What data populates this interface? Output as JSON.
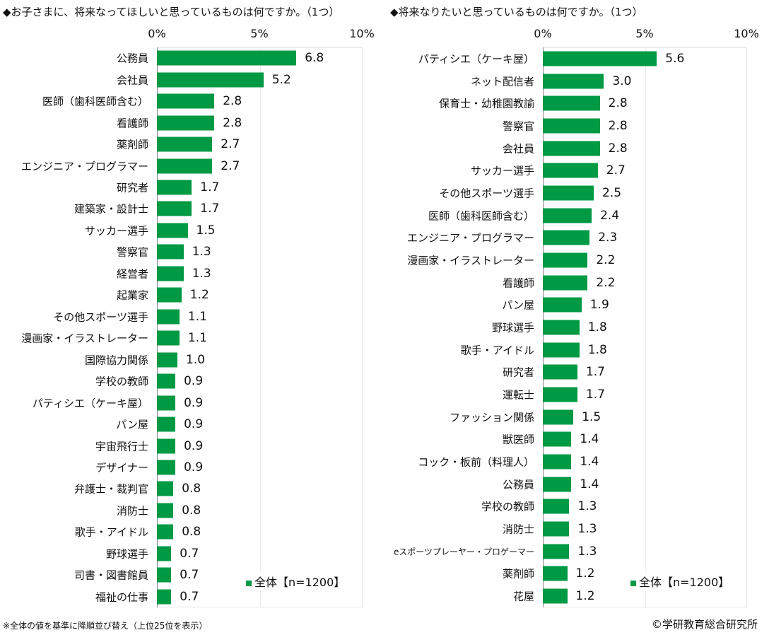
{
  "chart_data": [
    {
      "type": "bar",
      "orientation": "horizontal",
      "title": "◆お子さまに、将来なってほしいと思っているものは何ですか。（1つ）",
      "xlim": [
        0,
        10
      ],
      "xticks": [
        "0%",
        "5%",
        "10%"
      ],
      "legend": "全体【n=1200】",
      "legend_placement": "bottom-right",
      "categories": [
        "公務員",
        "会社員",
        "医師（歯科医師含む）",
        "看護師",
        "薬剤師",
        "エンジニア・プログラマー",
        "研究者",
        "建築家・設計士",
        "サッカー選手",
        "警察官",
        "経営者",
        "起業家",
        "その他スポーツ選手",
        "漫画家・イラストレーター",
        "国際協力関係",
        "学校の教師",
        "パティシエ（ケーキ屋）",
        "パン屋",
        "宇宙飛行士",
        "デザイナー",
        "弁護士・裁判官",
        "消防士",
        "歌手・アイドル",
        "野球選手",
        "司書・図書館員",
        "福祉の仕事"
      ],
      "values": [
        6.8,
        5.2,
        2.8,
        2.8,
        2.7,
        2.7,
        1.7,
        1.7,
        1.5,
        1.3,
        1.3,
        1.2,
        1.1,
        1.1,
        1.0,
        0.9,
        0.9,
        0.9,
        0.9,
        0.9,
        0.8,
        0.8,
        0.8,
        0.7,
        0.7,
        0.7
      ],
      "labels": [
        "6.8",
        "5.2",
        "2.8",
        "2.8",
        "2.7",
        "2.7",
        "1.7",
        "1.7",
        "1.5",
        "1.3",
        "1.3",
        "1.2",
        "1.1",
        "1.1",
        "1.0",
        "0.9",
        "0.9",
        "0.9",
        "0.9",
        "0.9",
        "0.8",
        "0.8",
        "0.8",
        "0.7",
        "0.7",
        "0.7"
      ]
    },
    {
      "type": "bar",
      "orientation": "horizontal",
      "title": "◆将来なりたいと思っているものは何ですか。（1つ）",
      "xlim": [
        0,
        10
      ],
      "xticks": [
        "0%",
        "5%",
        "10%"
      ],
      "legend": "全体【n=1200】",
      "legend_placement": "bottom-right",
      "categories": [
        "パティシエ（ケーキ屋）",
        "ネット配信者",
        "保育士・幼稚園教諭",
        "警察官",
        "会社員",
        "サッカー選手",
        "その他スポーツ選手",
        "医師（歯科医師含む）",
        "エンジニア・プログラマー",
        "漫画家・イラストレーター",
        "看護師",
        "パン屋",
        "野球選手",
        "歌手・アイドル",
        "研究者",
        "運転士",
        "ファッション関係",
        "獣医師",
        "コック・板前（料理人）",
        "公務員",
        "学校の教師",
        "消防士",
        "eスポーツプレーヤー・プロゲーマー",
        "薬剤師",
        "花屋"
      ],
      "values": [
        5.6,
        3.0,
        2.8,
        2.8,
        2.8,
        2.7,
        2.5,
        2.4,
        2.3,
        2.2,
        2.2,
        1.9,
        1.8,
        1.8,
        1.7,
        1.7,
        1.5,
        1.4,
        1.4,
        1.4,
        1.3,
        1.3,
        1.3,
        1.2,
        1.2
      ],
      "labels": [
        "5.6",
        "3.0",
        "2.8",
        "2.8",
        "2.8",
        "2.7",
        "2.5",
        "2.4",
        "2.3",
        "2.2",
        "2.2",
        "1.9",
        "1.8",
        "1.8",
        "1.7",
        "1.7",
        "1.5",
        "1.4",
        "1.4",
        "1.4",
        "1.3",
        "1.3",
        "1.3",
        "1.2",
        "1.2"
      ]
    }
  ],
  "footnote": "※全体の値を基準に降順並び替え（上位25位を表示）",
  "copyright": "©学研教育総合研究所"
}
